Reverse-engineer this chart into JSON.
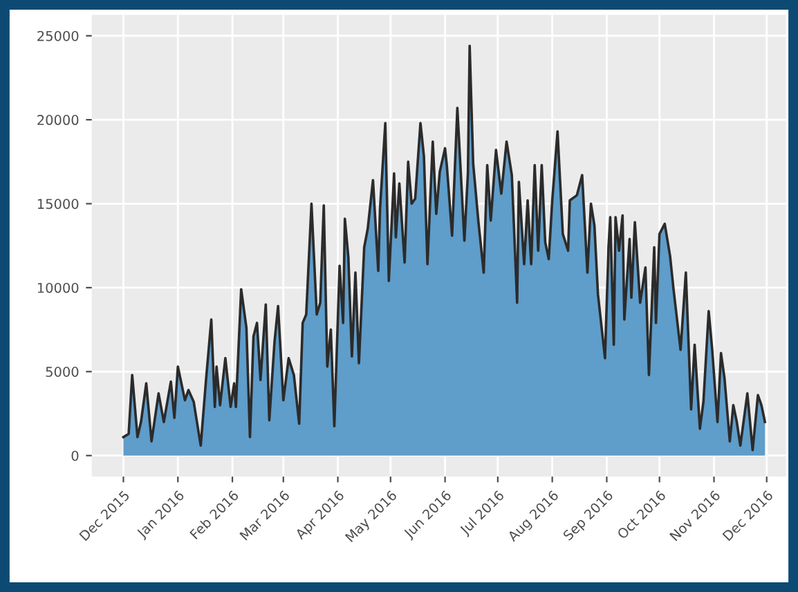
{
  "chart_data": {
    "type": "area",
    "x": [
      "2015-12-01",
      "2015-12-04",
      "2015-12-06",
      "2015-12-09",
      "2015-12-11",
      "2015-12-14",
      "2015-12-17",
      "2015-12-21",
      "2015-12-24",
      "2015-12-28",
      "2015-12-30",
      "2016-01-01",
      "2016-01-05",
      "2016-01-07",
      "2016-01-10",
      "2016-01-14",
      "2016-01-17",
      "2016-01-20",
      "2016-01-22",
      "2016-01-23",
      "2016-01-25",
      "2016-01-28",
      "2016-01-31",
      "2016-02-02",
      "2016-02-03",
      "2016-02-06",
      "2016-02-09",
      "2016-02-11",
      "2016-02-13",
      "2016-02-15",
      "2016-02-17",
      "2016-02-20",
      "2016-02-22",
      "2016-02-25",
      "2016-02-27",
      "2016-03-01",
      "2016-03-04",
      "2016-03-07",
      "2016-03-10",
      "2016-03-12",
      "2016-03-14",
      "2016-03-17",
      "2016-03-20",
      "2016-03-22",
      "2016-03-24",
      "2016-03-26",
      "2016-03-28",
      "2016-03-30",
      "2016-04-02",
      "2016-04-04",
      "2016-04-05",
      "2016-04-07",
      "2016-04-09",
      "2016-04-11",
      "2016-04-13",
      "2016-04-16",
      "2016-04-18",
      "2016-04-21",
      "2016-04-24",
      "2016-04-25",
      "2016-04-28",
      "2016-04-30",
      "2016-05-03",
      "2016-05-04",
      "2016-05-06",
      "2016-05-09",
      "2016-05-11",
      "2016-05-13",
      "2016-05-15",
      "2016-05-18",
      "2016-05-20",
      "2016-05-22",
      "2016-05-25",
      "2016-05-27",
      "2016-05-29",
      "2016-06-01",
      "2016-06-02",
      "2016-06-05",
      "2016-06-08",
      "2016-06-12",
      "2016-06-14",
      "2016-06-15",
      "2016-06-17",
      "2016-06-20",
      "2016-06-23",
      "2016-06-25",
      "2016-06-27",
      "2016-06-30",
      "2016-07-03",
      "2016-07-06",
      "2016-07-09",
      "2016-07-12",
      "2016-07-13",
      "2016-07-16",
      "2016-07-18",
      "2016-07-20",
      "2016-07-22",
      "2016-07-24",
      "2016-07-26",
      "2016-07-28",
      "2016-07-30",
      "2016-08-01",
      "2016-08-04",
      "2016-08-07",
      "2016-08-10",
      "2016-08-11",
      "2016-08-15",
      "2016-08-18",
      "2016-08-21",
      "2016-08-23",
      "2016-08-25",
      "2016-08-27",
      "2016-08-31",
      "2016-09-02",
      "2016-09-03",
      "2016-09-05",
      "2016-09-06",
      "2016-09-08",
      "2016-09-10",
      "2016-09-11",
      "2016-09-14",
      "2016-09-15",
      "2016-09-17",
      "2016-09-20",
      "2016-09-23",
      "2016-09-25",
      "2016-09-28",
      "2016-09-29",
      "2016-10-01",
      "2016-10-04",
      "2016-10-07",
      "2016-10-09",
      "2016-10-13",
      "2016-10-16",
      "2016-10-19",
      "2016-10-21",
      "2016-10-24",
      "2016-10-26",
      "2016-10-29",
      "2016-10-31",
      "2016-11-03",
      "2016-11-05",
      "2016-11-07",
      "2016-11-10",
      "2016-11-12",
      "2016-11-14",
      "2016-11-16",
      "2016-11-20",
      "2016-11-23",
      "2016-11-26",
      "2016-11-28",
      "2016-11-30"
    ],
    "series": [
      {
        "color": "#5f9dca",
        "values": [
          1100,
          1300,
          4800,
          1100,
          2000,
          4300,
          850,
          3700,
          2000,
          4400,
          2250,
          5300,
          3300,
          3900,
          3200,
          600,
          4500,
          8100,
          2900,
          5300,
          3000,
          5800,
          2900,
          4300,
          2900,
          9900,
          7600,
          1100,
          7100,
          7900,
          4500,
          9000,
          2100,
          6800,
          8900,
          3300,
          5800,
          4800,
          1900,
          7900,
          8400,
          15000,
          8400,
          9100,
          14900,
          5300,
          7500,
          1750,
          11300,
          7900,
          14100,
          11800,
          5900,
          10900,
          5500,
          12400,
          13500,
          16400,
          11000,
          14700,
          19800,
          10400,
          16800,
          13000,
          16200,
          11500,
          17500,
          15000,
          15300,
          19800,
          17800,
          11400,
          18700,
          14400,
          16900,
          18300,
          17300,
          13100,
          20700,
          12800,
          16800,
          24400,
          17400,
          13900,
          10900,
          17300,
          14000,
          18200,
          15600,
          18700,
          16700,
          9100,
          16300,
          11400,
          15200,
          11400,
          17300,
          12200,
          17300,
          12700,
          11700,
          15200,
          19300,
          13200,
          12200,
          15200,
          15500,
          16700,
          10900,
          15000,
          13700,
          9600,
          5800,
          12400,
          14200,
          6600,
          14200,
          12200,
          14300,
          8100,
          12900,
          9400,
          13900,
          9100,
          11200,
          4800,
          12400,
          7900,
          13200,
          13800,
          11900,
          9900,
          6300,
          10900,
          2750,
          6600,
          1600,
          3200,
          8600,
          6300,
          2000,
          6100,
          4600,
          850,
          3000,
          2000,
          600,
          3700,
          330,
          3600,
          3000,
          2000
        ]
      }
    ],
    "xlim": [
      "2015-11-13",
      "2016-12-12"
    ],
    "xticks": [
      {
        "value": "2015-12-01",
        "label": "Dec 2015"
      },
      {
        "value": "2016-01-01",
        "label": "Jan 2016"
      },
      {
        "value": "2016-02-01",
        "label": "Feb 2016"
      },
      {
        "value": "2016-03-01",
        "label": "Mar 2016"
      },
      {
        "value": "2016-04-01",
        "label": "Apr 2016"
      },
      {
        "value": "2016-05-01",
        "label": "May 2016"
      },
      {
        "value": "2016-06-01",
        "label": "Jun 2016"
      },
      {
        "value": "2016-07-01",
        "label": "Jul 2016"
      },
      {
        "value": "2016-08-01",
        "label": "Aug 2016"
      },
      {
        "value": "2016-09-01",
        "label": "Sep 2016"
      },
      {
        "value": "2016-10-01",
        "label": "Oct 2016"
      },
      {
        "value": "2016-11-01",
        "label": "Nov 2016"
      },
      {
        "value": "2016-12-01",
        "label": "Dec 2016"
      }
    ],
    "ylim": [
      -1250,
      26250
    ],
    "yticks": [
      0,
      5000,
      10000,
      15000,
      20000,
      25000
    ],
    "grid": true
  }
}
